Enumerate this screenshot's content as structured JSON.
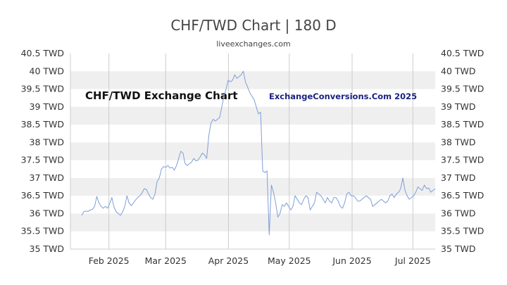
{
  "header": {
    "title": "CHF/TWD Chart | 180 D",
    "source": "liveexchanges.com"
  },
  "watermark": {
    "chart_label": "CHF/TWD Exchange Chart",
    "credit": "ExchangeConversions.Com 2025"
  },
  "colors": {
    "line": "#7d9fd8",
    "band": "#efefef",
    "grid": "#cccccc"
  },
  "chart_data": {
    "type": "line",
    "title": "CHF/TWD Chart | 180 D",
    "xlabel": "",
    "ylabel": "",
    "ylim": [
      35,
      40.5
    ],
    "y_ticks": [
      "35 TWD",
      "35.5 TWD",
      "36 TWD",
      "36.5 TWD",
      "37 TWD",
      "37.5 TWD",
      "38 TWD",
      "38.5 TWD",
      "39 TWD",
      "39.5 TWD",
      "40 TWD",
      "40.5 TWD"
    ],
    "x_tick_labels": [
      "Feb 2025",
      "Mar 2025",
      "Apr 2025",
      "May 2025",
      "Jun 2025",
      "Jul 2025"
    ],
    "x_tick_days": [
      19,
      47,
      78,
      108,
      139,
      169
    ],
    "days_span": 181,
    "grid": true,
    "series": [
      {
        "values": [
          35.95,
          36.05,
          36.07,
          36.06,
          36.1,
          36.12,
          36.2,
          36.48,
          36.3,
          36.2,
          36.15,
          36.2,
          36.15,
          36.28,
          36.45,
          36.18,
          36.05,
          36.0,
          35.95,
          36.05,
          36.2,
          36.5,
          36.3,
          36.22,
          36.3,
          36.38,
          36.45,
          36.5,
          36.58,
          36.7,
          36.68,
          36.55,
          36.45,
          36.4,
          36.55,
          36.9,
          37.0,
          37.25,
          37.32,
          37.3,
          37.35,
          37.28,
          37.3,
          37.22,
          37.35,
          37.55,
          37.75,
          37.7,
          37.4,
          37.35,
          37.4,
          37.45,
          37.55,
          37.48,
          37.5,
          37.6,
          37.7,
          37.65,
          37.55,
          38.2,
          38.55,
          38.65,
          38.6,
          38.65,
          38.7,
          39.0,
          39.3,
          39.5,
          39.75,
          39.7,
          39.75,
          39.9,
          39.8,
          39.85,
          39.9,
          40.0,
          39.7,
          39.55,
          39.4,
          39.3,
          39.2,
          39.0,
          38.8,
          38.85,
          37.2,
          37.15,
          37.2,
          35.4,
          36.8,
          36.6,
          36.3,
          35.9,
          36.0,
          36.25,
          36.2,
          36.3,
          36.2,
          36.1,
          36.2,
          36.5,
          36.4,
          36.3,
          36.25,
          36.4,
          36.5,
          36.45,
          36.1,
          36.2,
          36.3,
          36.6,
          36.55,
          36.5,
          36.4,
          36.3,
          36.45,
          36.35,
          36.3,
          36.45,
          36.45,
          36.35,
          36.2,
          36.15,
          36.3,
          36.55,
          36.6,
          36.5,
          36.5,
          36.45,
          36.35,
          36.35,
          36.4,
          36.45,
          36.5,
          36.45,
          36.4,
          36.2,
          36.25,
          36.3,
          36.35,
          36.4,
          36.35,
          36.3,
          36.35,
          36.5,
          36.55,
          36.45,
          36.55,
          36.6,
          36.7,
          37.0,
          36.65,
          36.5,
          36.4,
          36.45,
          36.5,
          36.6,
          36.75,
          36.7,
          36.65,
          36.8,
          36.7,
          36.72,
          36.6,
          36.65,
          36.7
        ]
      }
    ]
  }
}
